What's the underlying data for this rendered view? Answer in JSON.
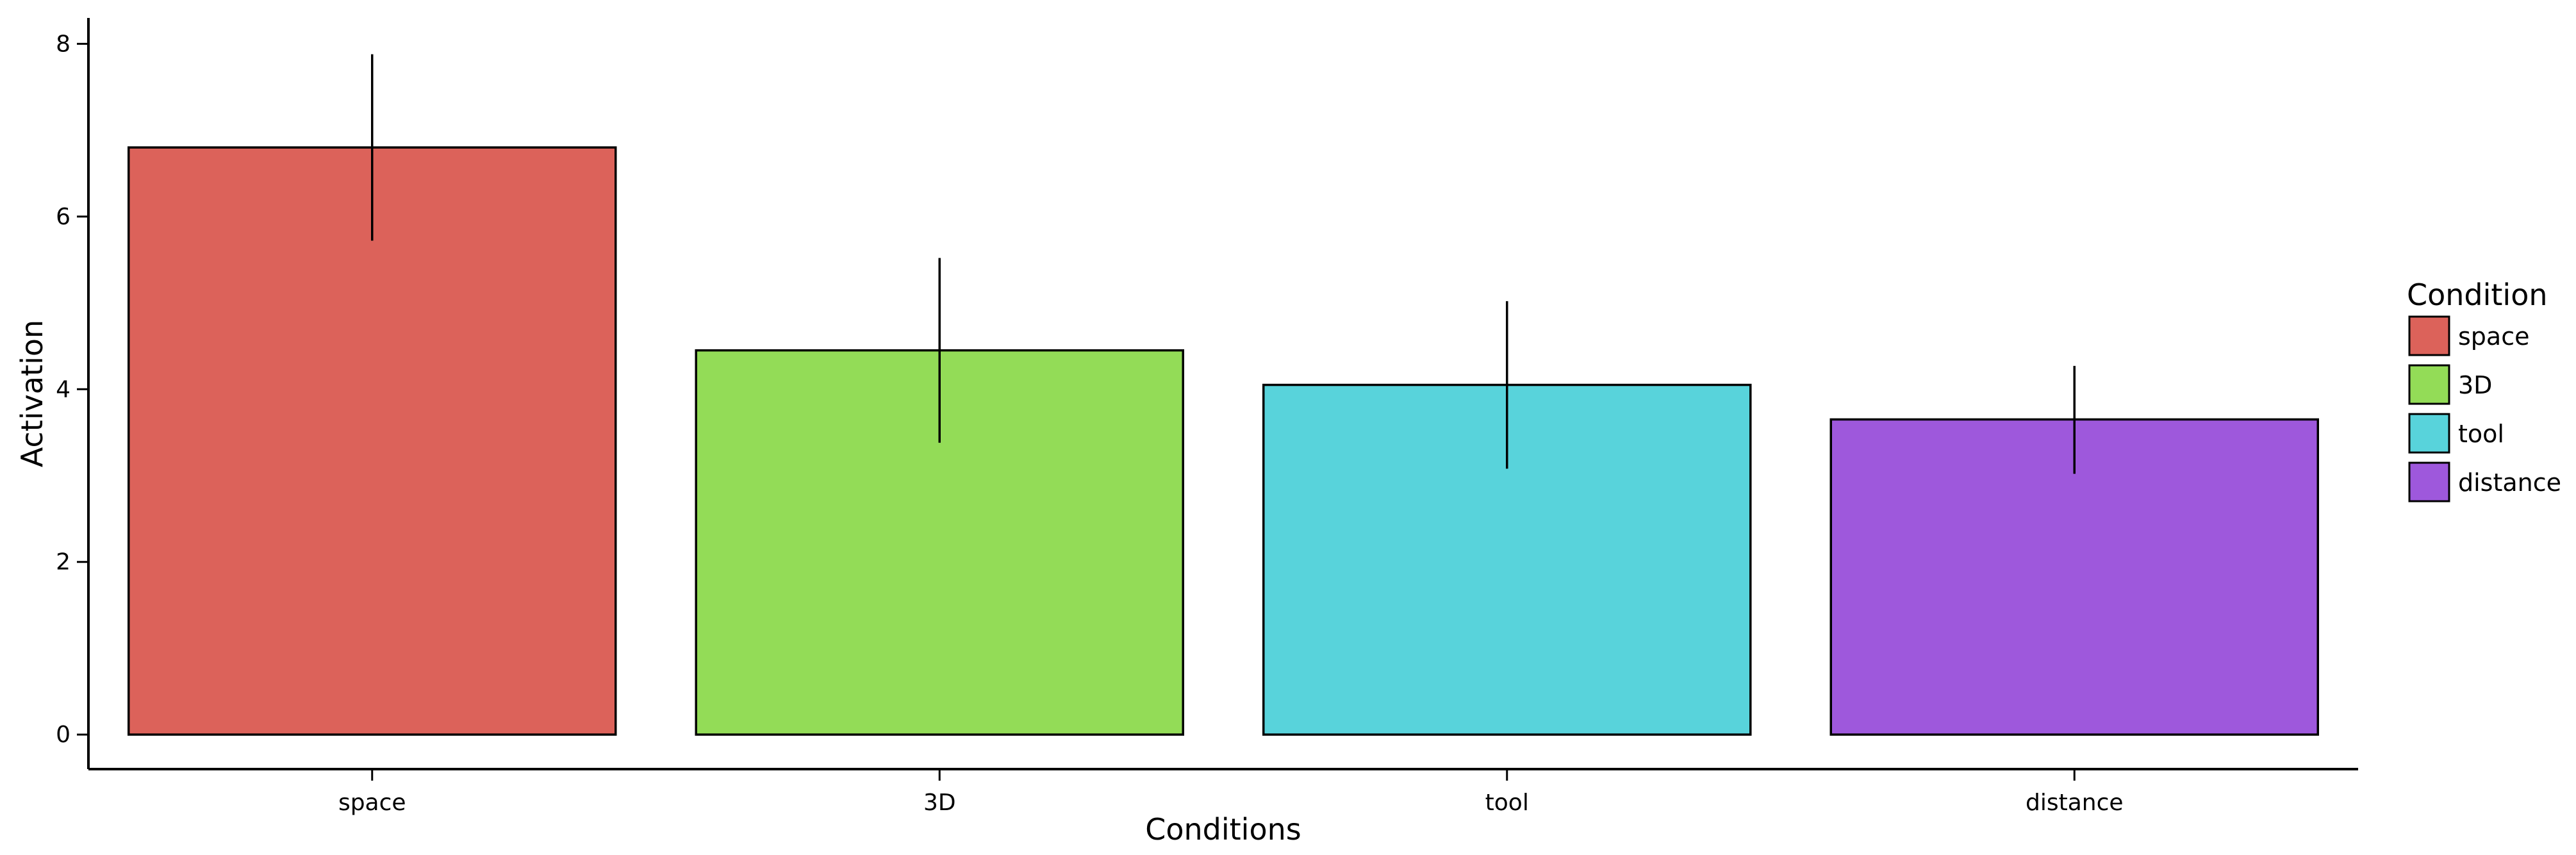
{
  "chart_data": {
    "type": "bar",
    "categories": [
      "space",
      "3D",
      "tool",
      "distance"
    ],
    "values": [
      6.8,
      4.45,
      4.05,
      3.65
    ],
    "error_bars": [
      {
        "low": 5.72,
        "high": 7.88
      },
      {
        "low": 3.38,
        "high": 5.52
      },
      {
        "low": 3.08,
        "high": 5.02
      },
      {
        "low": 3.02,
        "high": 4.27
      }
    ],
    "colors": [
      "#DC625A",
      "#93DC57",
      "#58D3DB",
      "#9E58DC"
    ],
    "xlabel": "Conditions",
    "ylabel": "Activation",
    "yticks": [
      0,
      2,
      4,
      6,
      8
    ],
    "ylim": [
      -0.4,
      8.3
    ],
    "grid": false,
    "legend": {
      "title": "Condition",
      "entries": [
        "space",
        "3D",
        "tool",
        "distance"
      ],
      "placement": "right"
    }
  }
}
